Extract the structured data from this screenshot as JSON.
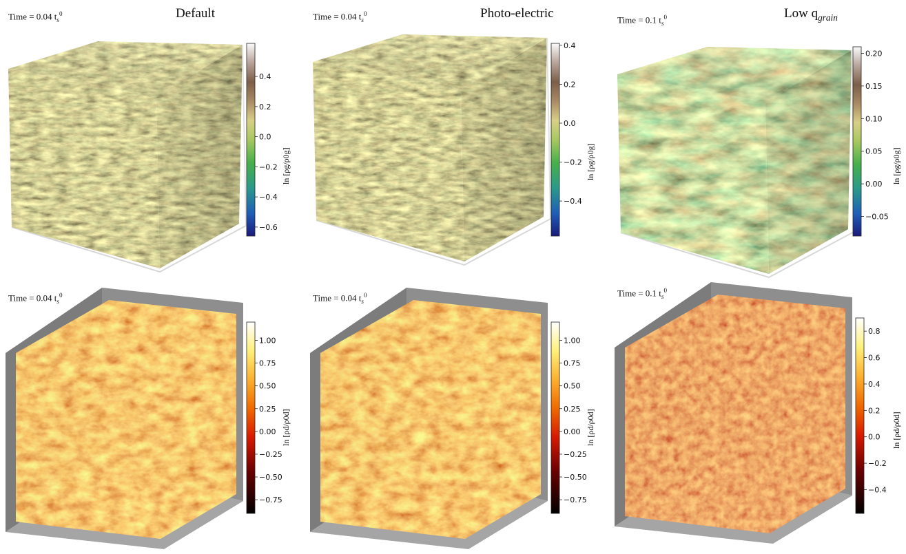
{
  "figure": {
    "columns": [
      "Default",
      "Photo-electric",
      "Low q"
    ],
    "title_subscript": "grain"
  },
  "chart_data": [
    {
      "type": "heatmap",
      "row": 0,
      "col": 0,
      "title": "Default",
      "time_label": "Time = 0.04 t",
      "time_value": 0.04,
      "colorbar": {
        "label": "ln [ρg/ρ0g]",
        "cmap": "gist_earth",
        "range": [
          -0.66,
          0.62
        ],
        "ticks": [
          -0.6,
          -0.4,
          -0.2,
          0.0,
          0.2,
          0.4
        ],
        "tick_labels": [
          "−0.6",
          "−0.4",
          "−0.2",
          "0.0",
          "0.2",
          "0.4"
        ]
      }
    },
    {
      "type": "heatmap",
      "row": 0,
      "col": 1,
      "title": "Photo-electric",
      "time_label": "Time = 0.04 t",
      "time_value": 0.04,
      "colorbar": {
        "label": "ln [ρg/ρ0g]",
        "cmap": "gist_earth",
        "range": [
          -0.58,
          0.41
        ],
        "ticks": [
          -0.4,
          -0.2,
          0.0,
          0.2,
          0.4
        ],
        "tick_labels": [
          "−0.4",
          "−0.2",
          "0.0",
          "0.2",
          "0.4"
        ]
      }
    },
    {
      "type": "heatmap",
      "row": 0,
      "col": 2,
      "title": "Low q",
      "time_label": "Time = 0.1 t",
      "time_value": 0.1,
      "colorbar": {
        "label": "ln [ρg/ρ0g]",
        "cmap": "gist_earth",
        "range": [
          -0.08,
          0.21
        ],
        "ticks": [
          -0.05,
          0.0,
          0.05,
          0.1,
          0.15,
          0.2
        ],
        "tick_labels": [
          "−0.05",
          "0.00",
          "0.05",
          "0.10",
          "0.15",
          "0.20"
        ]
      }
    },
    {
      "type": "heatmap",
      "row": 1,
      "col": 0,
      "time_label": "Time = 0.04 t",
      "time_value": 0.04,
      "colorbar": {
        "label": "ln [ρd/ρ0d]",
        "cmap": "afmhot",
        "range": [
          -0.9,
          1.2
        ],
        "ticks": [
          -0.75,
          -0.5,
          -0.25,
          0.0,
          0.25,
          0.5,
          0.75,
          1.0
        ],
        "tick_labels": [
          "−0.75",
          "−0.50",
          "−0.25",
          "0.00",
          "0.25",
          "0.50",
          "0.75",
          "1.00"
        ]
      }
    },
    {
      "type": "heatmap",
      "row": 1,
      "col": 1,
      "time_label": "Time = 0.04 t",
      "time_value": 0.04,
      "colorbar": {
        "label": "ln [ρd/ρ0d]",
        "cmap": "afmhot",
        "range": [
          -0.9,
          1.2
        ],
        "ticks": [
          -0.75,
          -0.5,
          -0.25,
          0.0,
          0.25,
          0.5,
          0.75,
          1.0
        ],
        "tick_labels": [
          "−0.75",
          "−0.50",
          "−0.25",
          "0.00",
          "0.25",
          "0.50",
          "0.75",
          "1.00"
        ]
      }
    },
    {
      "type": "heatmap",
      "row": 1,
      "col": 2,
      "time_label": "Time = 0.1 t",
      "time_value": 0.1,
      "colorbar": {
        "label": "ln [ρd/ρ0d]",
        "cmap": "afmhot",
        "range": [
          -0.58,
          0.9
        ],
        "ticks": [
          -0.4,
          -0.2,
          0.0,
          0.2,
          0.4,
          0.6,
          0.8
        ],
        "tick_labels": [
          "−0.4",
          "−0.2",
          "0.0",
          "0.2",
          "0.4",
          "0.6",
          "0.8"
        ]
      }
    }
  ]
}
